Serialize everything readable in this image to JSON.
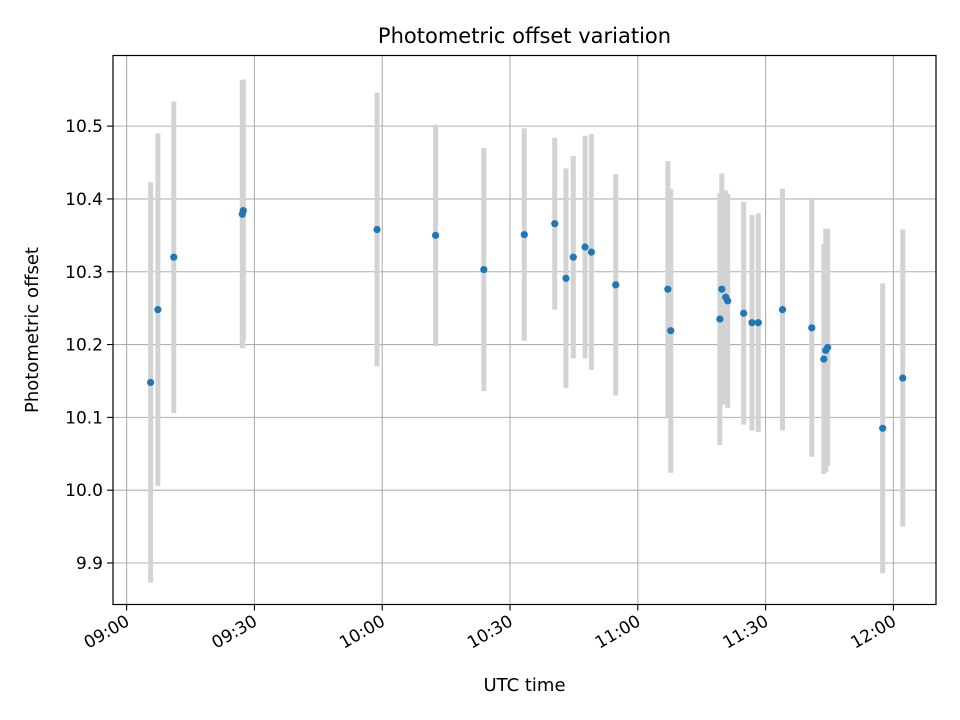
{
  "chart_data": {
    "type": "scatter",
    "title": "Photometric offset variation",
    "xlabel": "UTC time",
    "ylabel": "Photometric offset",
    "x_ticks": [
      "09:00",
      "09:30",
      "10:00",
      "10:30",
      "11:00",
      "11:30",
      "12:00"
    ],
    "x_tick_minutes": [
      540,
      570,
      600,
      630,
      660,
      690,
      720
    ],
    "xlim_minutes": [
      536.8,
      730.0
    ],
    "y_ticks": [
      "9.9",
      "10.0",
      "10.1",
      "10.2",
      "10.3",
      "10.4",
      "10.5"
    ],
    "y_tick_values": [
      9.9,
      10.0,
      10.1,
      10.2,
      10.3,
      10.4,
      10.5
    ],
    "ylim": [
      9.843,
      10.597
    ],
    "grid": true,
    "marker_color": "#1f77b4",
    "errorbar_color": "#d3d3d3",
    "points": [
      {
        "t": "09:05:38",
        "y": 10.148,
        "err": 0.275
      },
      {
        "t": "09:07:20",
        "y": 10.248,
        "err": 0.242
      },
      {
        "t": "09:11:04",
        "y": 10.32,
        "err": 0.214
      },
      {
        "t": "09:27:09",
        "y": 10.379,
        "err": 0.184
      },
      {
        "t": "09:27:23",
        "y": 10.384,
        "err": 0.18
      },
      {
        "t": "09:58:47",
        "y": 10.358,
        "err": 0.188
      },
      {
        "t": "10:12:32",
        "y": 10.35,
        "err": 0.152
      },
      {
        "t": "10:23:51",
        "y": 10.303,
        "err": 0.167
      },
      {
        "t": "10:33:21",
        "y": 10.351,
        "err": 0.146
      },
      {
        "t": "10:40:30",
        "y": 10.366,
        "err": 0.118
      },
      {
        "t": "10:43:08",
        "y": 10.291,
        "err": 0.151
      },
      {
        "t": "10:44:51",
        "y": 10.32,
        "err": 0.139
      },
      {
        "t": "10:47:37",
        "y": 10.334,
        "err": 0.153
      },
      {
        "t": "10:49:06",
        "y": 10.327,
        "err": 0.162
      },
      {
        "t": "10:54:49",
        "y": 10.282,
        "err": 0.152
      },
      {
        "t": "11:07:03",
        "y": 10.276,
        "err": 0.176
      },
      {
        "t": "11:07:44",
        "y": 10.219,
        "err": 0.195
      },
      {
        "t": "11:19:16",
        "y": 10.235,
        "err": 0.173
      },
      {
        "t": "11:19:43",
        "y": 10.276,
        "err": 0.159
      },
      {
        "t": "11:20:38",
        "y": 10.265,
        "err": 0.147
      },
      {
        "t": "11:21:06",
        "y": 10.26,
        "err": 0.147
      },
      {
        "t": "11:24:51",
        "y": 10.243,
        "err": 0.153
      },
      {
        "t": "11:26:48",
        "y": 10.23,
        "err": 0.148
      },
      {
        "t": "11:28:17",
        "y": 10.23,
        "err": 0.15
      },
      {
        "t": "11:33:58",
        "y": 10.248,
        "err": 0.166
      },
      {
        "t": "11:40:50",
        "y": 10.223,
        "err": 0.177
      },
      {
        "t": "11:43:40",
        "y": 10.18,
        "err": 0.158
      },
      {
        "t": "11:44:07",
        "y": 10.192,
        "err": 0.167
      },
      {
        "t": "11:44:34",
        "y": 10.196,
        "err": 0.163
      },
      {
        "t": "11:57:29",
        "y": 10.085,
        "err": 0.199
      },
      {
        "t": "12:02:12",
        "y": 10.154,
        "err": 0.204
      }
    ]
  }
}
